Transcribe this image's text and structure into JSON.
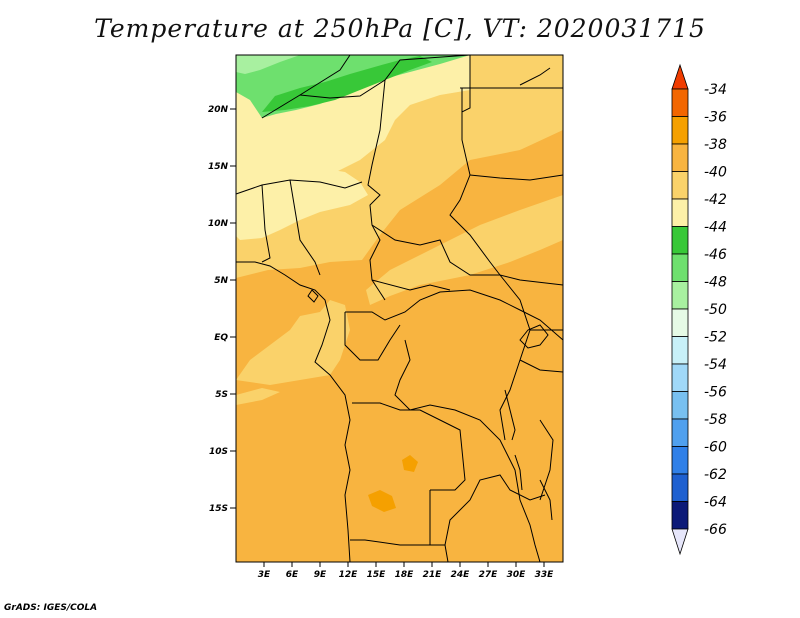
{
  "map": {
    "title": "Temperature at 250hPa [C], VT: 2020031715",
    "credit": "GrADS: IGES/COLA",
    "lon_range": [
      0,
      35
    ],
    "lat_range": [
      -20,
      25
    ],
    "lat_ticks": [
      {
        "lat": 20,
        "label": "20N"
      },
      {
        "lat": 15,
        "label": "15N"
      },
      {
        "lat": 10,
        "label": "10N"
      },
      {
        "lat": 5,
        "label": "5N"
      },
      {
        "lat": 0,
        "label": "EQ"
      },
      {
        "lat": -5,
        "label": "5S"
      },
      {
        "lat": -10,
        "label": "10S"
      },
      {
        "lat": -15,
        "label": "15S"
      }
    ],
    "lon_ticks": [
      {
        "lon": 3,
        "label": "3E"
      },
      {
        "lon": 6,
        "label": "6E"
      },
      {
        "lon": 9,
        "label": "9E"
      },
      {
        "lon": 12,
        "label": "12E"
      },
      {
        "lon": 15,
        "label": "15E"
      },
      {
        "lon": 18,
        "label": "18E"
      },
      {
        "lon": 21,
        "label": "21E"
      },
      {
        "lon": 24,
        "label": "24E"
      },
      {
        "lon": 27,
        "label": "27E"
      },
      {
        "lon": 30,
        "label": "30E"
      },
      {
        "lon": 33,
        "label": "33E"
      }
    ]
  },
  "colorbar": {
    "labels": [
      "-34",
      "-36",
      "-38",
      "-40",
      "-42",
      "-44",
      "-46",
      "-48",
      "-50",
      "-52",
      "-54",
      "-56",
      "-58",
      "-60",
      "-62",
      "-64",
      "-66"
    ],
    "top_arrow_color": "#f03c00",
    "bottom_arrow_color": "#e6e6fa",
    "colors": [
      "#f26600",
      "#f5a000",
      "#f8b440",
      "#fad26a",
      "#fdf0a8",
      "#38c838",
      "#6ee06e",
      "#a8f0a0",
      "#e6fae6",
      "#c8f0f8",
      "#a0d8f8",
      "#78c0f0",
      "#50a0ee",
      "#3080e8",
      "#1e60d0",
      "#0c1a78"
    ]
  },
  "fields": {
    "colors": {
      "lvl_m44": "#38c838",
      "lvl_m42_46": "#6ee06e",
      "lvl_m42": "#fdf0a8",
      "lvl_m40": "#fad26a",
      "lvl_m38": "#f8b440"
    }
  }
}
